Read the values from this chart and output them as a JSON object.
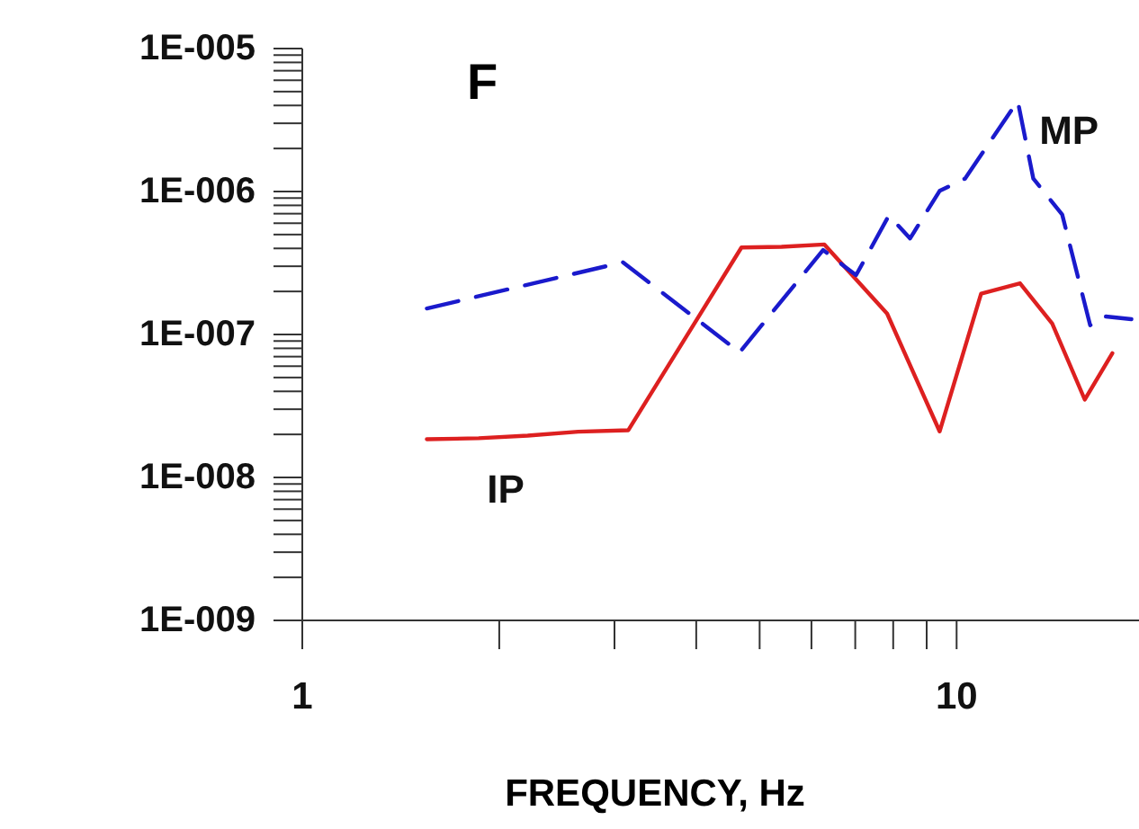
{
  "chart_data": {
    "type": "line",
    "title": "F",
    "xlabel": "FREQUENCY, Hz",
    "log": "xy",
    "grid": false,
    "xlim": [
      1,
      19
    ],
    "ylim": [
      1e-09,
      1e-05
    ],
    "xticks": [
      1,
      {
        "value": 2,
        "label": null
      },
      {
        "value": 3,
        "label": null
      },
      {
        "value": 4,
        "label": null
      },
      {
        "value": 5,
        "label": null
      },
      {
        "value": 6,
        "label": null
      },
      {
        "value": 7,
        "label": null
      },
      {
        "value": 8,
        "label": null
      },
      {
        "value": 9,
        "label": null
      },
      10
    ],
    "yticks": [
      {
        "value": 1e-09,
        "label": "1E-009"
      },
      {
        "value": 2e-09,
        "label": null
      },
      {
        "value": 3e-09,
        "label": null
      },
      {
        "value": 4e-09,
        "label": null
      },
      {
        "value": 5e-09,
        "label": null
      },
      {
        "value": 6e-09,
        "label": null
      },
      {
        "value": 7e-09,
        "label": null
      },
      {
        "value": 8e-09,
        "label": null
      },
      {
        "value": 9e-09,
        "label": null
      },
      {
        "value": 1e-08,
        "label": "1E-008"
      },
      {
        "value": 2e-08,
        "label": null
      },
      {
        "value": 3e-08,
        "label": null
      },
      {
        "value": 4e-08,
        "label": null
      },
      {
        "value": 5e-08,
        "label": null
      },
      {
        "value": 6e-08,
        "label": null
      },
      {
        "value": 7e-08,
        "label": null
      },
      {
        "value": 8e-08,
        "label": null
      },
      {
        "value": 9e-08,
        "label": null
      },
      {
        "value": 1e-07,
        "label": "1E-007"
      },
      {
        "value": 2e-07,
        "label": null
      },
      {
        "value": 3e-07,
        "label": null
      },
      {
        "value": 4e-07,
        "label": null
      },
      {
        "value": 5e-07,
        "label": null
      },
      {
        "value": 6e-07,
        "label": null
      },
      {
        "value": 7e-07,
        "label": null
      },
      {
        "value": 8e-07,
        "label": null
      },
      {
        "value": 9e-07,
        "label": null
      },
      {
        "value": 1e-06,
        "label": "1E-006"
      },
      {
        "value": 2e-06,
        "label": null
      },
      {
        "value": 3e-06,
        "label": null
      },
      {
        "value": 4e-06,
        "label": null
      },
      {
        "value": 5e-06,
        "label": null
      },
      {
        "value": 6e-06,
        "label": null
      },
      {
        "value": 7e-06,
        "label": null
      },
      {
        "value": 8e-06,
        "label": null
      },
      {
        "value": 9e-06,
        "label": null
      },
      {
        "value": 1e-05,
        "label": "1E-005"
      }
    ],
    "series": [
      {
        "name": "IP",
        "color": "#dd2020",
        "line_style": "solid",
        "x": [
          1.55,
          1.86,
          2.21,
          2.64,
          3.15,
          4.69,
          5.4,
          6.28,
          7.83,
          9.42,
          10.9,
          12.5,
          14.0,
          15.7,
          17.3
        ],
        "values": [
          1.85e-08,
          1.88e-08,
          1.96e-08,
          2.09e-08,
          2.14e-08,
          4.06e-07,
          4.1e-07,
          4.26e-07,
          1.4e-07,
          2.1e-08,
          1.93e-07,
          2.28e-07,
          1.19e-07,
          3.5e-08,
          7.4e-08
        ]
      },
      {
        "name": "MP",
        "color": "#1a1acc",
        "line_style": "dashed",
        "x": [
          1.55,
          3.09,
          4.66,
          6.25,
          7.02,
          7.88,
          8.49,
          9.42,
          10.3,
          12.4,
          13.1,
          14.5,
          16.0,
          16.8,
          18.5
        ],
        "values": [
          1.52e-07,
          3.2e-07,
          7.5e-08,
          3.9e-07,
          2.6e-07,
          6.8e-07,
          4.7e-07,
          1.01e-06,
          1.23e-06,
          4.3e-06,
          1.23e-06,
          6.9e-07,
          1.16e-07,
          1.34e-07,
          1.28e-07
        ]
      }
    ]
  }
}
